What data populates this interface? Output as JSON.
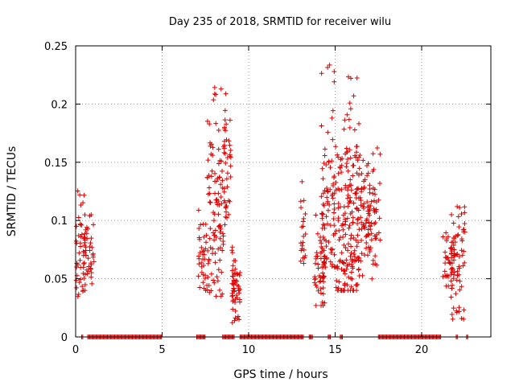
{
  "chart_data": {
    "type": "scatter",
    "title": "Day 235 of 2018, SRMTID for receiver wilu",
    "xlabel": "GPS time / hours",
    "ylabel": "SRMTID / TECUs",
    "xlim": [
      0,
      24
    ],
    "ylim": [
      0,
      0.25
    ],
    "xticks": [
      0,
      5,
      10,
      15,
      20
    ],
    "yticks": [
      0,
      0.05,
      0.1,
      0.15,
      0.2,
      0.25
    ],
    "xtick_labels": [
      "0",
      "5",
      "10",
      "15",
      "20"
    ],
    "ytick_labels": [
      "0",
      "0.05",
      "0.1",
      "0.15",
      "0.2",
      "0.25"
    ],
    "grid": true,
    "marker": "+",
    "color": "#dd0000",
    "series": [
      {
        "name": "SRMTID",
        "clusters": [
          {
            "x_range": [
              0.0,
              0.55
            ],
            "y_range": [
              0.025,
              0.13
            ],
            "center": 0.065,
            "n": 45
          },
          {
            "x_range": [
              0.5,
              1.1
            ],
            "y_range": [
              0.04,
              0.105
            ],
            "center": 0.075,
            "n": 40
          },
          {
            "x_range": [
              7.1,
              7.6
            ],
            "y_range": [
              0.04,
              0.11
            ],
            "center": 0.07,
            "n": 35
          },
          {
            "x_range": [
              7.6,
              8.6
            ],
            "y_range": [
              0.035,
              0.22
            ],
            "center": 0.09,
            "n": 110
          },
          {
            "x_range": [
              8.6,
              9.0
            ],
            "y_range": [
              0.08,
              0.21
            ],
            "center": 0.15,
            "n": 35
          },
          {
            "x_range": [
              9.0,
              9.5
            ],
            "y_range": [
              0.012,
              0.08
            ],
            "center": 0.045,
            "n": 55
          },
          {
            "x_range": [
              13.0,
              13.3
            ],
            "y_range": [
              0.055,
              0.135
            ],
            "center": 0.08,
            "n": 22
          },
          {
            "x_range": [
              13.8,
              14.4
            ],
            "y_range": [
              0.027,
              0.11
            ],
            "center": 0.06,
            "n": 55
          },
          {
            "x_range": [
              14.2,
              15.0
            ],
            "y_range": [
              0.06,
              0.235
            ],
            "center": 0.1,
            "n": 80
          },
          {
            "x_range": [
              15.0,
              15.8
            ],
            "y_range": [
              0.04,
              0.2
            ],
            "center": 0.095,
            "n": 85
          },
          {
            "x_range": [
              15.7,
              16.4
            ],
            "y_range": [
              0.04,
              0.225
            ],
            "center": 0.1,
            "n": 85
          },
          {
            "x_range": [
              16.2,
              17.6
            ],
            "y_range": [
              0.045,
              0.165
            ],
            "center": 0.1,
            "n": 120
          },
          {
            "x_range": [
              21.2,
              21.9
            ],
            "y_range": [
              0.04,
              0.09
            ],
            "center": 0.06,
            "n": 45
          },
          {
            "x_range": [
              21.7,
              22.5
            ],
            "y_range": [
              0.015,
              0.112
            ],
            "center": 0.07,
            "n": 60
          }
        ],
        "zero_segments": [
          [
            0.35,
            0.45
          ],
          [
            0.7,
            5.0
          ],
          [
            7.0,
            7.5
          ],
          [
            8.5,
            9.2
          ],
          [
            9.5,
            13.2
          ],
          [
            13.5,
            13.7
          ],
          [
            14.6,
            14.75
          ],
          [
            15.3,
            15.45
          ],
          [
            17.5,
            21.1
          ],
          [
            22.0,
            22.1
          ],
          [
            22.6,
            22.7
          ]
        ]
      }
    ]
  }
}
